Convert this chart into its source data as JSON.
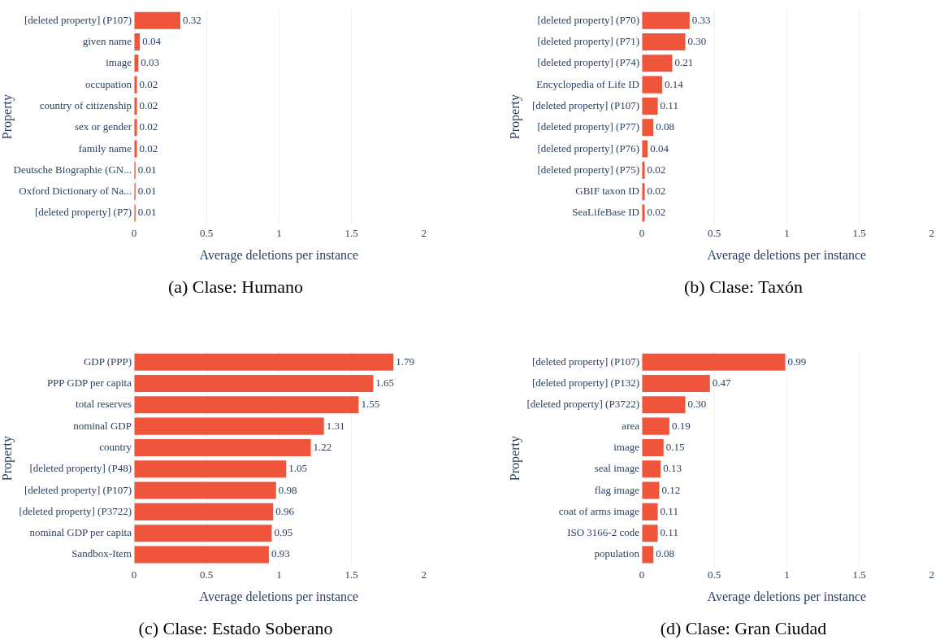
{
  "chart_data": [
    {
      "type": "bar",
      "orientation": "horizontal",
      "categories": [
        "[deleted property] (P107)",
        "given name",
        "image",
        "occupation",
        "country of citizenship",
        "sex or gender",
        "family name",
        "Deutsche Biographie (GN...",
        "Oxford Dictionary of Na...",
        "[deleted property] (P7)"
      ],
      "values": [
        0.32,
        0.04,
        0.03,
        0.02,
        0.02,
        0.02,
        0.02,
        0.01,
        0.01,
        0.01
      ],
      "value_labels": [
        "0.32",
        "0.04",
        "0.03",
        "0.02",
        "0.02",
        "0.02",
        "0.02",
        "0.01",
        "0.01",
        "0.01"
      ],
      "color": "#ef553b",
      "xlabel": "Average deletions per instance",
      "ylabel": "Property",
      "xlim": [
        0,
        2
      ],
      "xticks": [
        0,
        0.5,
        1,
        1.5,
        2
      ],
      "grid": "x",
      "annotations": [
        "(a) Clase: Humano"
      ]
    },
    {
      "type": "bar",
      "orientation": "horizontal",
      "categories": [
        "[deleted property] (P70)",
        "[deleted property] (P71)",
        "[deleted property] (P74)",
        "Encyclopedia of Life ID",
        "[deleted property] (P107)",
        "[deleted property] (P77)",
        "[deleted property] (P76)",
        "[deleted property] (P75)",
        "GBIF taxon ID",
        "SeaLifeBase ID"
      ],
      "values": [
        0.33,
        0.3,
        0.21,
        0.14,
        0.11,
        0.08,
        0.04,
        0.02,
        0.02,
        0.02
      ],
      "value_labels": [
        "0.33",
        "0.30",
        "0.21",
        "0.14",
        "0.11",
        "0.08",
        "0.04",
        "0.02",
        "0.02",
        "0.02"
      ],
      "color": "#ef553b",
      "xlabel": "Average deletions per instance",
      "ylabel": "Property",
      "xlim": [
        0,
        2
      ],
      "xticks": [
        0,
        0.5,
        1,
        1.5,
        2
      ],
      "grid": "x",
      "annotations": [
        "(b) Clase: Taxón"
      ]
    },
    {
      "type": "bar",
      "orientation": "horizontal",
      "categories": [
        "GDP (PPP)",
        "PPP GDP per capita",
        "total reserves",
        "nominal GDP",
        "country",
        "[deleted property] (P48)",
        "[deleted property] (P107)",
        "[deleted property] (P3722)",
        "nominal GDP per capita",
        "Sandbox-Item"
      ],
      "values": [
        1.79,
        1.65,
        1.55,
        1.31,
        1.22,
        1.05,
        0.98,
        0.96,
        0.95,
        0.93
      ],
      "value_labels": [
        "1.79",
        "1.65",
        "1.55",
        "1.31",
        "1.22",
        "1.05",
        "0.98",
        "0.96",
        "0.95",
        "0.93"
      ],
      "color": "#ef553b",
      "xlabel": "Average deletions per instance",
      "ylabel": "Property",
      "xlim": [
        0,
        2
      ],
      "xticks": [
        0,
        0.5,
        1,
        1.5,
        2
      ],
      "grid": "x",
      "annotations": [
        "(c) Clase: Estado Soberano"
      ]
    },
    {
      "type": "bar",
      "orientation": "horizontal",
      "categories": [
        "[deleted property] (P107)",
        "[deleted property] (P132)",
        "[deleted property] (P3722)",
        "area",
        "image",
        "seal image",
        "flag image",
        "coat of arms image",
        "ISO 3166-2 code",
        "population"
      ],
      "values": [
        0.99,
        0.47,
        0.3,
        0.19,
        0.15,
        0.13,
        0.12,
        0.11,
        0.11,
        0.08
      ],
      "value_labels": [
        "0.99",
        "0.47",
        "0.30",
        "0.19",
        "0.15",
        "0.13",
        "0.12",
        "0.11",
        "0.11",
        "0.08"
      ],
      "color": "#ef553b",
      "xlabel": "Average deletions per instance",
      "ylabel": "Property",
      "xlim": [
        0,
        2
      ],
      "xticks": [
        0,
        0.5,
        1,
        1.5,
        2
      ],
      "grid": "x",
      "annotations": [
        "(d) Clase: Gran Ciudad"
      ]
    }
  ]
}
